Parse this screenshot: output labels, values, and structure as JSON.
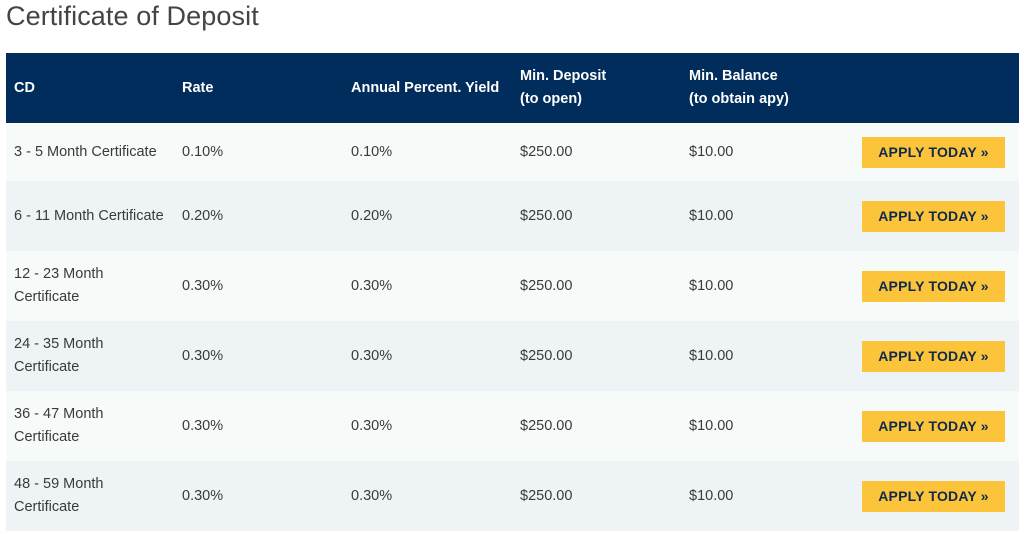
{
  "page": {
    "title": "Certificate of Deposit"
  },
  "table": {
    "headers": {
      "cd": "CD",
      "rate": "Rate",
      "apy": "Annual Percent. Yield",
      "min_deposit_line1": "Min. Deposit",
      "min_deposit_line2": "(to open)",
      "min_balance_line1": "Min. Balance",
      "min_balance_line2": "(to obtain apy)"
    },
    "rows": [
      {
        "cd": "3 - 5 Month Certificate",
        "rate": "0.10%",
        "apy": "0.10%",
        "min_deposit": "$250.00",
        "min_balance": "$10.00",
        "action": "APPLY TODAY »"
      },
      {
        "cd": "6 - 11 Month Certificate",
        "rate": "0.20%",
        "apy": "0.20%",
        "min_deposit": "$250.00",
        "min_balance": "$10.00",
        "action": "APPLY TODAY »"
      },
      {
        "cd": "12 - 23 Month Certificate",
        "rate": "0.30%",
        "apy": "0.30%",
        "min_deposit": "$250.00",
        "min_balance": "$10.00",
        "action": "APPLY TODAY »"
      },
      {
        "cd": "24 - 35 Month Certificate",
        "rate": "0.30%",
        "apy": "0.30%",
        "min_deposit": "$250.00",
        "min_balance": "$10.00",
        "action": "APPLY TODAY »"
      },
      {
        "cd": "36 - 47 Month Certificate",
        "rate": "0.30%",
        "apy": "0.30%",
        "min_deposit": "$250.00",
        "min_balance": "$10.00",
        "action": "APPLY TODAY »"
      },
      {
        "cd": "48 - 59 Month Certificate",
        "rate": "0.30%",
        "apy": "0.30%",
        "min_deposit": "$250.00",
        "min_balance": "$10.00",
        "action": "APPLY TODAY »"
      }
    ]
  },
  "colors": {
    "header_bg": "#012d5c",
    "button_bg": "#fcc43a",
    "row_odd": "#f6fbfa",
    "row_even": "#eef3f6"
  }
}
